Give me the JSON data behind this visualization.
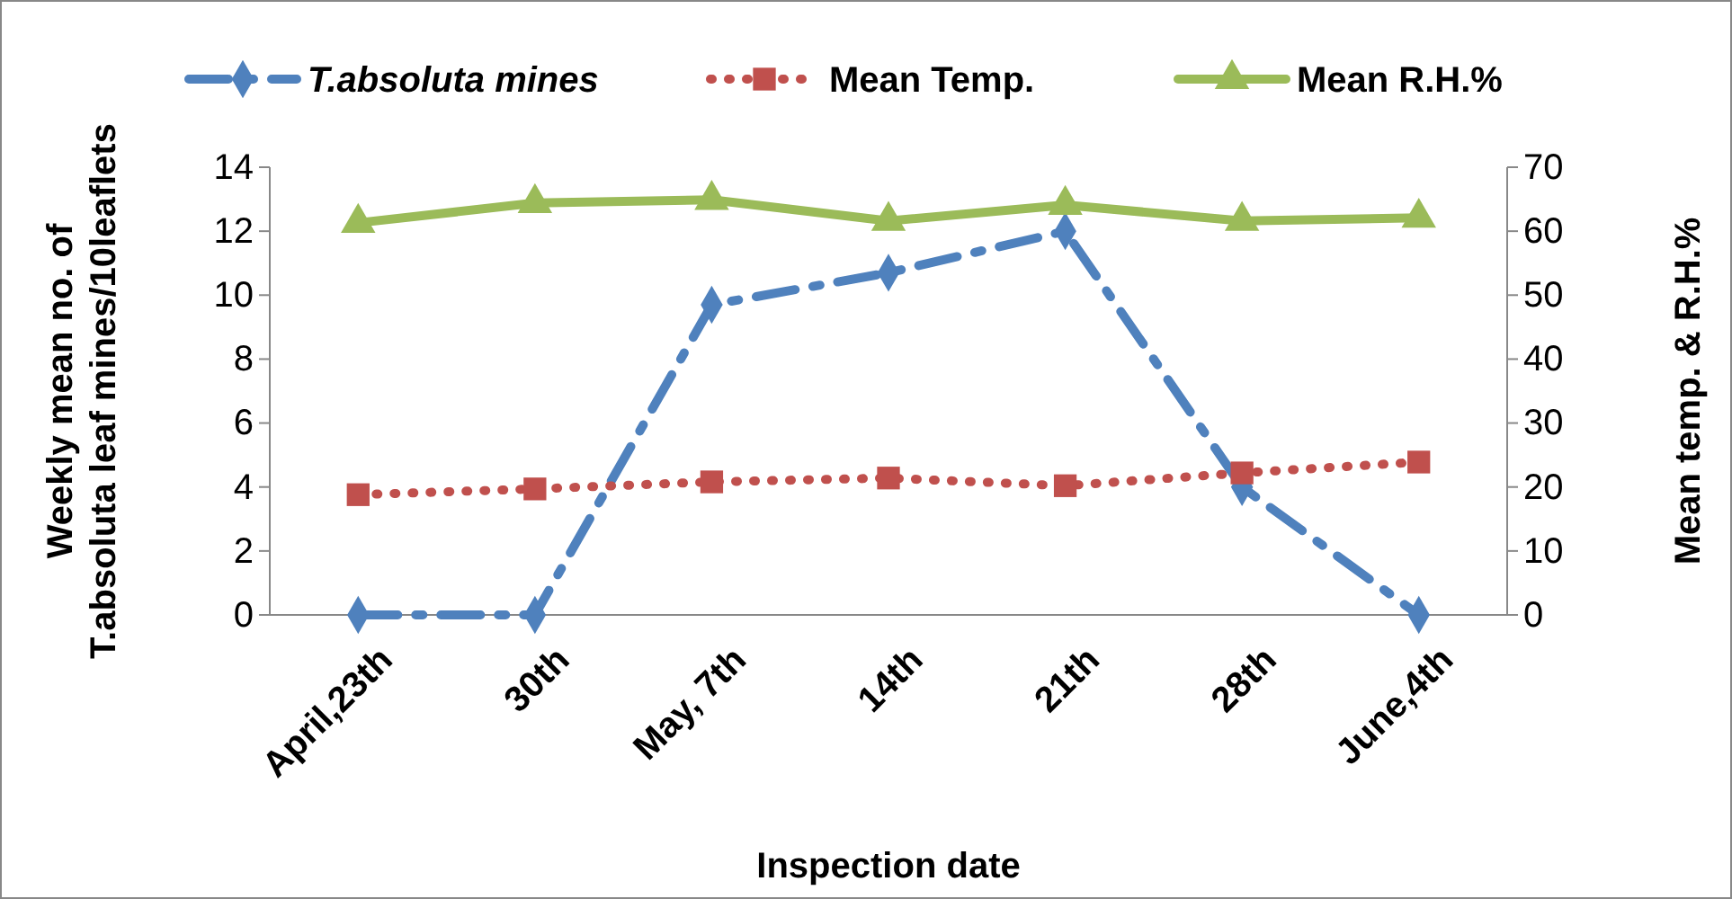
{
  "chart_data": {
    "type": "line",
    "xlabel": "Inspection date",
    "ylabel": "Weekly mean no. of T.absoluta leaf mines/10leaflets",
    "y2label": "Mean temp. & R.H.%",
    "categories": [
      "April,23th",
      "30th",
      "May, 7th",
      "14th",
      "21th",
      "28th",
      "June,4th"
    ],
    "ylim": [
      0,
      14
    ],
    "yticks": [
      0,
      2,
      4,
      6,
      8,
      10,
      12,
      14
    ],
    "y2lim": [
      0,
      70
    ],
    "y2ticks": [
      0,
      10,
      20,
      30,
      40,
      50,
      60,
      70
    ],
    "grid": false,
    "legend": "top",
    "series": [
      {
        "name": "T.absoluta mines",
        "color": "#4f81bd",
        "marker": "diamond",
        "line_style": "dashed",
        "values": [
          0,
          0,
          9.7,
          10.7,
          12,
          4.0,
          0
        ]
      },
      {
        "name": "Mean Temp.",
        "color": "#c0504d",
        "marker": "square",
        "line_style": "dotted",
        "axis": "y2",
        "values": [
          18.8,
          19.7,
          20.8,
          21.4,
          20.2,
          22.2,
          23.9
        ]
      },
      {
        "name": "Mean R.H.%",
        "color": "#9bbb59",
        "marker": "triangle",
        "line_style": "solid",
        "axis": "y2",
        "values": [
          61.3,
          64.4,
          64.9,
          61.6,
          64.1,
          61.6,
          62.1
        ]
      }
    ]
  }
}
